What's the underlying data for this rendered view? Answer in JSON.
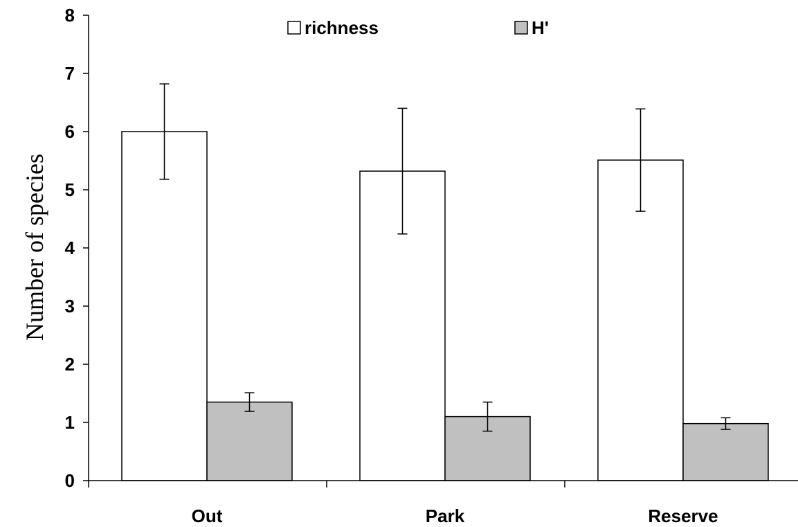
{
  "chart_data": {
    "type": "bar",
    "title": "",
    "xlabel": "",
    "ylabel": "Number of species",
    "categories": [
      "Out",
      "Park",
      "Reserve"
    ],
    "ylim": [
      0,
      8
    ],
    "yticks": [
      0,
      1,
      2,
      3,
      4,
      5,
      6,
      7,
      8
    ],
    "grid": false,
    "legend_position": "top",
    "series": [
      {
        "name": "richness",
        "color": "#ffffff",
        "values": [
          6.0,
          5.32,
          5.51
        ],
        "error": [
          0.82,
          1.08,
          0.88
        ]
      },
      {
        "name": "H'",
        "color": "#c0c0c0",
        "values": [
          1.35,
          1.1,
          0.98
        ],
        "error": [
          0.16,
          0.25,
          0.1
        ]
      }
    ]
  }
}
